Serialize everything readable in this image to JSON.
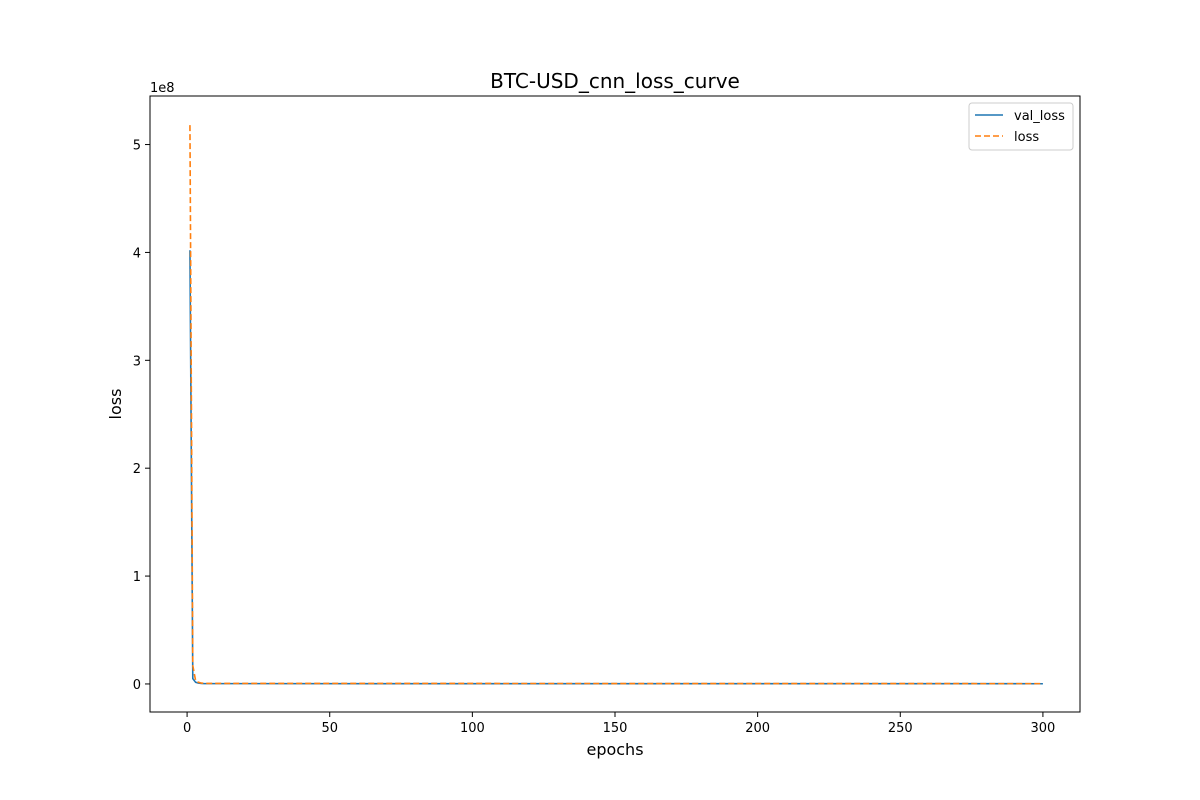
{
  "chart_data": {
    "type": "line",
    "title": "BTC-USD_cnn_loss_curve",
    "xlabel": "epochs",
    "ylabel": "loss",
    "y_offset_label": "1e8",
    "y_scale_factor": 100000000,
    "xlim": [
      -13,
      313
    ],
    "ylim": [
      -0.26,
      5.45
    ],
    "x_ticks": [
      0,
      50,
      100,
      150,
      200,
      250,
      300
    ],
    "y_ticks": [
      0,
      1,
      2,
      3,
      4,
      5
    ],
    "grid": false,
    "legend_placement": "top-right",
    "series": [
      {
        "name": "val_loss",
        "style": "solid",
        "color": "#1f77b4",
        "x": [
          1,
          2,
          3,
          4,
          5,
          6,
          300
        ],
        "y": [
          4.02,
          0.05,
          0.015,
          0.008,
          0.005,
          0.003,
          0.002
        ]
      },
      {
        "name": "loss",
        "style": "dashed",
        "color": "#ff7f0e",
        "x": [
          1,
          2,
          3,
          4,
          5,
          6,
          300
        ],
        "y": [
          5.18,
          0.17,
          0.03,
          0.015,
          0.008,
          0.005,
          0.003
        ]
      }
    ]
  }
}
